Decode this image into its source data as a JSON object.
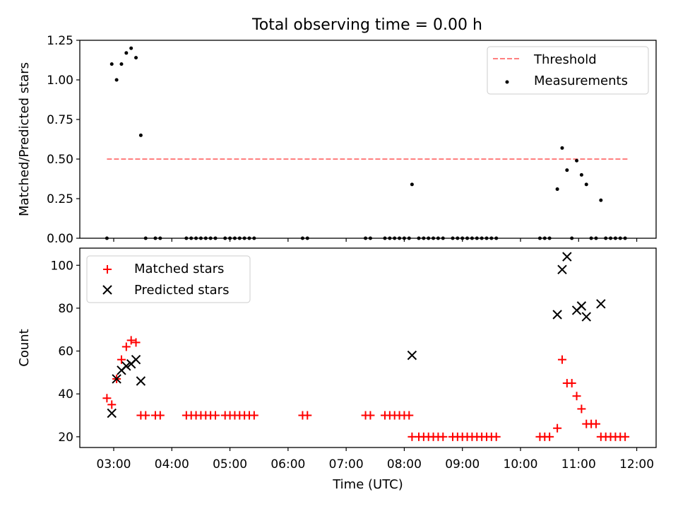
{
  "title": "Total observing time = 0.00 h",
  "chart_data": [
    {
      "type": "scatter",
      "panel": "top",
      "ylabel": "Matched/Predicted stars",
      "ylim": [
        0,
        1.25
      ],
      "xlim": [
        "02:25",
        "12:20"
      ],
      "yticks": [
        0,
        0.25,
        0.5,
        0.75,
        1.0,
        1.25
      ],
      "ytick_labels": [
        "0.00",
        "0.25",
        "0.50",
        "0.75",
        "1.00",
        "1.25"
      ],
      "legend_position": "upper right",
      "threshold": {
        "name": "Threshold",
        "value": 0.5,
        "x_start": "02:53",
        "x_end": "11:52",
        "color": "#ff7f7f",
        "style": "dashed"
      },
      "series": [
        {
          "name": "Measurements",
          "color": "#000000",
          "marker": "dot",
          "points": [
            [
              "02:53",
              0
            ],
            [
              "02:58",
              1.1
            ],
            [
              "03:03",
              1.0
            ],
            [
              "03:08",
              1.1
            ],
            [
              "03:13",
              1.17
            ],
            [
              "03:18",
              1.2
            ],
            [
              "03:23",
              1.14
            ],
            [
              "03:28",
              0.65
            ],
            [
              "03:33",
              0
            ],
            [
              "03:43",
              0
            ],
            [
              "03:48",
              0
            ],
            [
              "04:15",
              0
            ],
            [
              "04:20",
              0
            ],
            [
              "04:25",
              0
            ],
            [
              "04:30",
              0
            ],
            [
              "04:35",
              0
            ],
            [
              "04:40",
              0
            ],
            [
              "04:45",
              0
            ],
            [
              "04:55",
              0
            ],
            [
              "05:00",
              0
            ],
            [
              "05:05",
              0
            ],
            [
              "05:10",
              0
            ],
            [
              "05:15",
              0
            ],
            [
              "05:20",
              0
            ],
            [
              "05:25",
              0
            ],
            [
              "06:15",
              0
            ],
            [
              "06:20",
              0
            ],
            [
              "07:20",
              0
            ],
            [
              "07:25",
              0
            ],
            [
              "07:40",
              0
            ],
            [
              "07:45",
              0
            ],
            [
              "07:50",
              0
            ],
            [
              "07:55",
              0
            ],
            [
              "08:00",
              0
            ],
            [
              "08:05",
              0
            ],
            [
              "08:08",
              0.34
            ],
            [
              "08:15",
              0
            ],
            [
              "08:20",
              0
            ],
            [
              "08:25",
              0
            ],
            [
              "08:30",
              0
            ],
            [
              "08:35",
              0
            ],
            [
              "08:40",
              0
            ],
            [
              "08:50",
              0
            ],
            [
              "08:55",
              0
            ],
            [
              "09:00",
              0
            ],
            [
              "09:05",
              0
            ],
            [
              "09:10",
              0
            ],
            [
              "09:15",
              0
            ],
            [
              "09:20",
              0
            ],
            [
              "09:25",
              0
            ],
            [
              "09:30",
              0
            ],
            [
              "09:35",
              0
            ],
            [
              "10:20",
              0
            ],
            [
              "10:25",
              0
            ],
            [
              "10:30",
              0
            ],
            [
              "10:38",
              0.31
            ],
            [
              "10:43",
              0.57
            ],
            [
              "10:48",
              0.43
            ],
            [
              "10:53",
              0
            ],
            [
              "10:58",
              0.49
            ],
            [
              "11:03",
              0.4
            ],
            [
              "11:08",
              0.34
            ],
            [
              "11:13",
              0
            ],
            [
              "11:18",
              0
            ],
            [
              "11:23",
              0.24
            ],
            [
              "11:28",
              0
            ],
            [
              "11:33",
              0
            ],
            [
              "11:38",
              0
            ],
            [
              "11:43",
              0
            ],
            [
              "11:48",
              0
            ]
          ]
        }
      ]
    },
    {
      "type": "scatter",
      "panel": "bottom",
      "xlabel": "Time (UTC)",
      "ylabel": "Count",
      "ylim": [
        15,
        108
      ],
      "xlim": [
        "02:25",
        "12:20"
      ],
      "yticks": [
        20,
        40,
        60,
        80,
        100
      ],
      "ytick_labels": [
        "20",
        "40",
        "60",
        "80",
        "100"
      ],
      "xticks": [
        "03:00",
        "04:00",
        "05:00",
        "06:00",
        "07:00",
        "08:00",
        "09:00",
        "10:00",
        "11:00",
        "12:00"
      ],
      "legend_position": "upper left",
      "series": [
        {
          "name": "Matched stars",
          "color": "#ff0000",
          "marker": "plus",
          "points": [
            [
              "02:53",
              38
            ],
            [
              "02:58",
              35
            ],
            [
              "03:03",
              47
            ],
            [
              "03:08",
              56
            ],
            [
              "03:13",
              62
            ],
            [
              "03:18",
              65
            ],
            [
              "03:23",
              64
            ],
            [
              "03:28",
              30
            ],
            [
              "03:33",
              30
            ],
            [
              "03:43",
              30
            ],
            [
              "03:48",
              30
            ],
            [
              "04:15",
              30
            ],
            [
              "04:20",
              30
            ],
            [
              "04:25",
              30
            ],
            [
              "04:30",
              30
            ],
            [
              "04:35",
              30
            ],
            [
              "04:40",
              30
            ],
            [
              "04:45",
              30
            ],
            [
              "04:55",
              30
            ],
            [
              "05:00",
              30
            ],
            [
              "05:05",
              30
            ],
            [
              "05:10",
              30
            ],
            [
              "05:15",
              30
            ],
            [
              "05:20",
              30
            ],
            [
              "05:25",
              30
            ],
            [
              "06:15",
              30
            ],
            [
              "06:20",
              30
            ],
            [
              "07:20",
              30
            ],
            [
              "07:25",
              30
            ],
            [
              "07:40",
              30
            ],
            [
              "07:45",
              30
            ],
            [
              "07:50",
              30
            ],
            [
              "07:55",
              30
            ],
            [
              "08:00",
              30
            ],
            [
              "08:05",
              30
            ],
            [
              "08:08",
              20
            ],
            [
              "08:15",
              20
            ],
            [
              "08:20",
              20
            ],
            [
              "08:25",
              20
            ],
            [
              "08:30",
              20
            ],
            [
              "08:35",
              20
            ],
            [
              "08:40",
              20
            ],
            [
              "08:50",
              20
            ],
            [
              "08:55",
              20
            ],
            [
              "09:00",
              20
            ],
            [
              "09:05",
              20
            ],
            [
              "09:10",
              20
            ],
            [
              "09:15",
              20
            ],
            [
              "09:20",
              20
            ],
            [
              "09:25",
              20
            ],
            [
              "09:30",
              20
            ],
            [
              "09:35",
              20
            ],
            [
              "10:20",
              20
            ],
            [
              "10:25",
              20
            ],
            [
              "10:30",
              20
            ],
            [
              "10:38",
              24
            ],
            [
              "10:43",
              56
            ],
            [
              "10:48",
              45
            ],
            [
              "10:53",
              45
            ],
            [
              "10:58",
              39
            ],
            [
              "11:03",
              33
            ],
            [
              "11:08",
              26
            ],
            [
              "11:13",
              26
            ],
            [
              "11:18",
              26
            ],
            [
              "11:23",
              20
            ],
            [
              "11:28",
              20
            ],
            [
              "11:33",
              20
            ],
            [
              "11:38",
              20
            ],
            [
              "11:43",
              20
            ],
            [
              "11:48",
              20
            ]
          ]
        },
        {
          "name": "Predicted stars",
          "color": "#000000",
          "marker": "x",
          "points": [
            [
              "02:58",
              31
            ],
            [
              "03:03",
              47
            ],
            [
              "03:08",
              51
            ],
            [
              "03:13",
              53
            ],
            [
              "03:18",
              54
            ],
            [
              "03:23",
              56
            ],
            [
              "03:28",
              46
            ],
            [
              "08:08",
              58
            ],
            [
              "10:38",
              77
            ],
            [
              "10:43",
              98
            ],
            [
              "10:48",
              104
            ],
            [
              "10:58",
              79
            ],
            [
              "11:03",
              81
            ],
            [
              "11:08",
              76
            ],
            [
              "11:23",
              82
            ]
          ]
        }
      ]
    }
  ]
}
